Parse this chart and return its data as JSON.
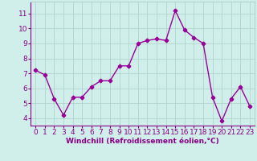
{
  "x": [
    0,
    1,
    2,
    3,
    4,
    5,
    6,
    7,
    8,
    9,
    10,
    11,
    12,
    13,
    14,
    15,
    16,
    17,
    18,
    19,
    20,
    21,
    22,
    23
  ],
  "y": [
    7.2,
    6.9,
    5.3,
    4.2,
    5.4,
    5.4,
    6.1,
    6.5,
    6.5,
    7.5,
    7.5,
    9.0,
    9.2,
    9.3,
    9.2,
    11.2,
    9.9,
    9.4,
    9.0,
    5.4,
    3.8,
    5.3,
    6.1,
    4.8
  ],
  "line_color": "#990099",
  "marker": "P",
  "marker_size": 3,
  "background_color": "#d0eeea",
  "grid_color": "#b0d4ce",
  "xlabel": "Windchill (Refroidissement éolien,°C)",
  "xlabel_color": "#880088",
  "tick_color": "#880088",
  "ylim": [
    3.5,
    11.8
  ],
  "yticks": [
    4,
    5,
    6,
    7,
    8,
    9,
    10,
    11
  ],
  "xlim": [
    -0.5,
    23.5
  ],
  "xticks": [
    0,
    1,
    2,
    3,
    4,
    5,
    6,
    7,
    8,
    9,
    10,
    11,
    12,
    13,
    14,
    15,
    16,
    17,
    18,
    19,
    20,
    21,
    22,
    23
  ],
  "tick_fontsize": 6.5,
  "xlabel_fontsize": 6.5,
  "linewidth": 1.0
}
